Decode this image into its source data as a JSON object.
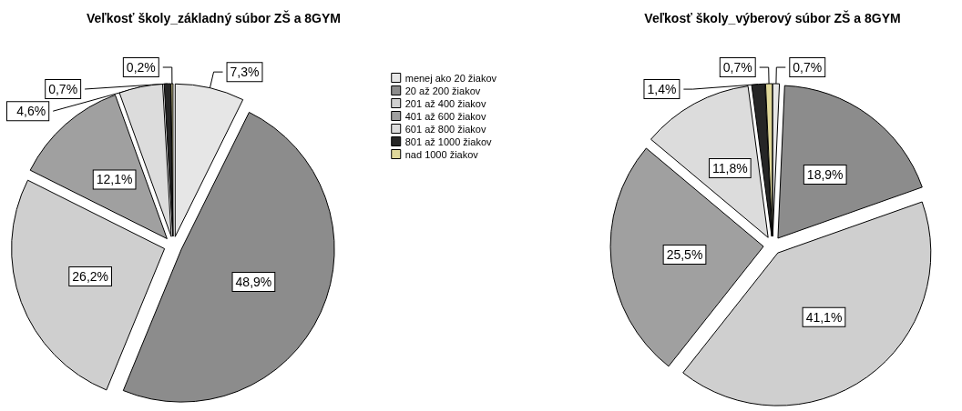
{
  "chart_data": [
    {
      "type": "pie",
      "title": "Veľkosť školy_základný súbor ZŠ a 8GYM",
      "categories": [
        "menej ako 20 žiakov",
        "20 až 200 žiakov",
        "201 až 400 žiakov",
        "401 až 600 žiakov",
        "601 až 800 žiakov",
        "801 až 1000 žiakov",
        "nad 1000 žiakov"
      ],
      "values": [
        7.3,
        48.9,
        26.2,
        12.1,
        4.6,
        0.7,
        0.2
      ],
      "value_labels": [
        "7,3%",
        "48,9%",
        "26,2%",
        "12,1%",
        "4,6%",
        "0,7%",
        "0,2%"
      ],
      "colors": [
        "#e6e6e6",
        "#8c8c8c",
        "#cfcfcf",
        "#a0a0a0",
        "#dcdcdc",
        "#262626",
        "#e0d89a"
      ],
      "legend": "right"
    },
    {
      "type": "pie",
      "title": "Veľkosť školy_výberový súbor ZŠ a 8GYM",
      "categories": [
        null,
        null,
        null,
        null,
        null,
        null,
        null
      ],
      "values": [
        0.7,
        18.9,
        41.1,
        25.5,
        11.8,
        1.4,
        0.7
      ],
      "value_labels": [
        "0,7%",
        "18,9%",
        "41,1%",
        "25,5%",
        "11,8%",
        "1,4%",
        "0,7%"
      ],
      "colors": [
        "#e6e6e6",
        "#8c8c8c",
        "#cfcfcf",
        "#a0a0a0",
        "#dcdcdc",
        "#262626",
        "#e0d89a"
      ],
      "legend": false
    }
  ]
}
